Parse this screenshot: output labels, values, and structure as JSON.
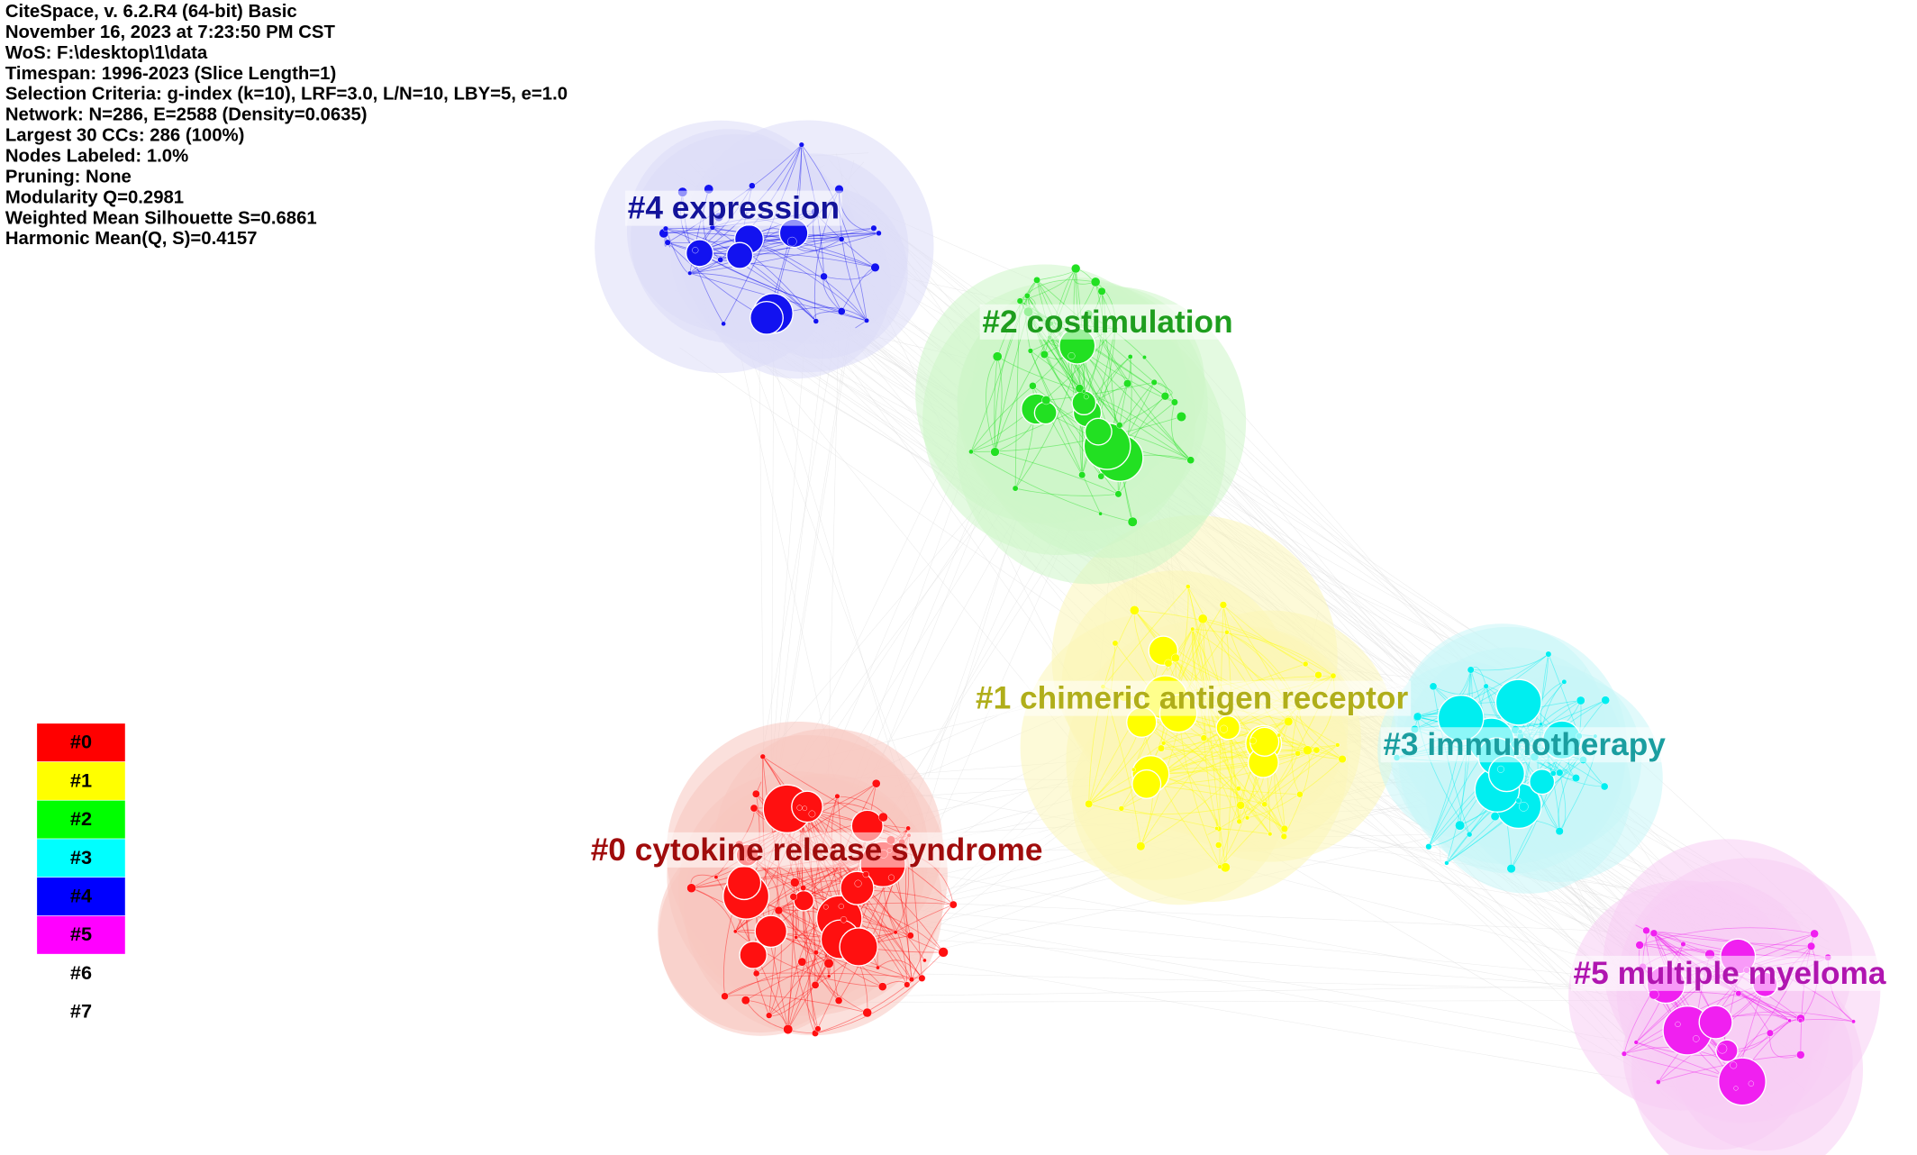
{
  "header": {
    "lines": [
      "CiteSpace, v. 6.2.R4 (64-bit) Basic",
      "November 16, 2023 at 7:23:50 PM CST",
      "WoS: F:\\desktop\\1\\data",
      "Timespan: 1996-2023 (Slice Length=1)",
      "Selection Criteria: g-index (k=10), LRF=3.0, L/N=10, LBY=5, e=1.0",
      "Network: N=286, E=2588 (Density=0.0635)",
      "Largest 30 CCs: 286 (100%)",
      "Nodes Labeled: 1.0%",
      "Pruning: None",
      "Modularity Q=0.2981",
      "Weighted Mean Silhouette S=0.6861",
      "Harmonic Mean(Q, S)=0.4157"
    ]
  },
  "clusters": [
    {
      "label": "#0 cytokine release syndrome"
    },
    {
      "label": "#1 chimeric antigen receptor"
    },
    {
      "label": "#2 costimulation"
    },
    {
      "label": "#3 immunotherapy"
    },
    {
      "label": "#4 expression"
    },
    {
      "label": "#5 multiple myeloma"
    }
  ],
  "legend": {
    "items": [
      "#0",
      "#1",
      "#2",
      "#3",
      "#4",
      "#5",
      "#6",
      "#7"
    ]
  }
}
